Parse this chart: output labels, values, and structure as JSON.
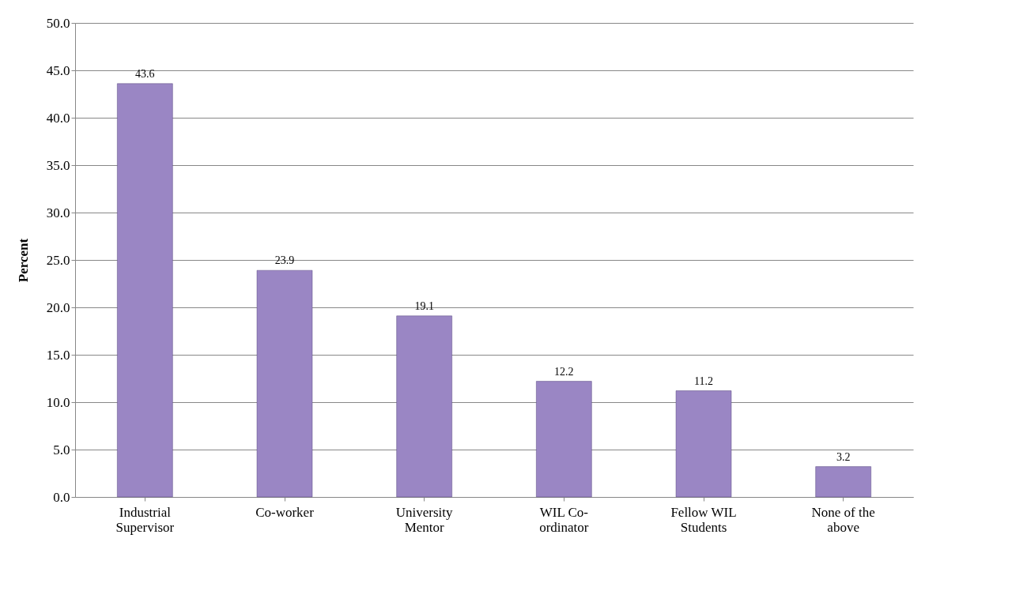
{
  "chart_data": {
    "type": "bar",
    "ylabel": "Percent",
    "categories": [
      "Industrial Supervisor",
      "Co-worker",
      "University Mentor",
      "WIL Co-ordinator",
      "Fellow WIL Students",
      "None of the above"
    ],
    "values": [
      43.6,
      23.9,
      19.1,
      12.2,
      11.2,
      3.2
    ],
    "color": "#9a86c4",
    "ylim": [
      0,
      50
    ],
    "yticks": [
      {
        "value": 0,
        "label": "0.0"
      },
      {
        "value": 5,
        "label": "5.0"
      },
      {
        "value": 10,
        "label": "10.0"
      },
      {
        "value": 15,
        "label": "15.0"
      },
      {
        "value": 20,
        "label": "20.0"
      },
      {
        "value": 25,
        "label": "25.0"
      },
      {
        "value": 30,
        "label": "30.0"
      },
      {
        "value": 35,
        "label": "35.0"
      },
      {
        "value": 40,
        "label": "40.0"
      },
      {
        "value": 45,
        "label": "45.0"
      },
      {
        "value": 50,
        "label": "50.0"
      }
    ],
    "grid": "y",
    "data_labels": true
  }
}
